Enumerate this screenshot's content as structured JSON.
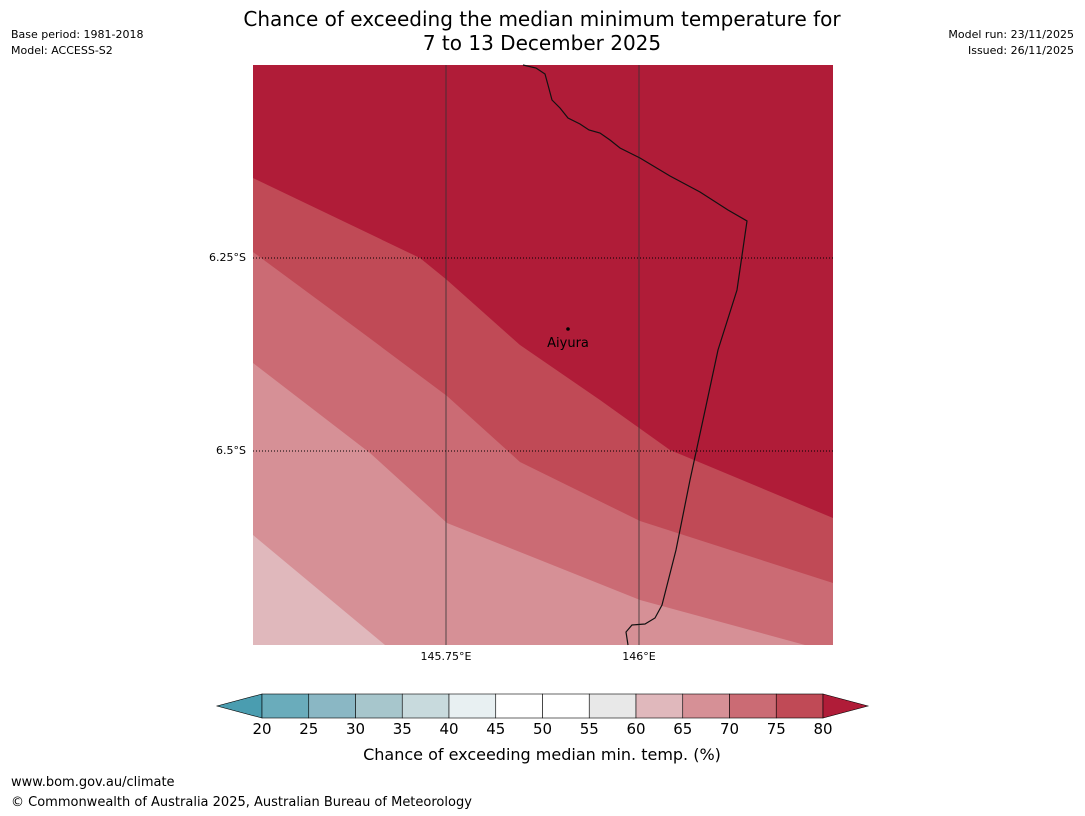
{
  "title": {
    "line1": "Chance of exceeding the median minimum temperature for",
    "line2": "7 to 13 December 2025"
  },
  "meta": {
    "base_period": "Base period: 1981-2018",
    "model": "Model: ACCESS-S2",
    "model_run": "Model run: 23/11/2025",
    "issued": "Issued: 26/11/2025"
  },
  "map": {
    "latitudes": [
      "6.25°S",
      "6.5°S"
    ],
    "longitudes": [
      "145.75°E",
      "146°E"
    ],
    "place": "Aiyura",
    "band_colors": {
      "p80plus": "#b01c38",
      "p75_80": "#c04a56",
      "p70_75": "#cb6b74",
      "p65_70": "#d69096",
      "p60_65": "#e0b8bc"
    }
  },
  "colorbar": {
    "ticks": [
      "20",
      "25",
      "30",
      "35",
      "40",
      "45",
      "50",
      "55",
      "60",
      "65",
      "70",
      "75",
      "80"
    ],
    "segment_colors": [
      "#6aacbb",
      "#8ab7c4",
      "#a7c6cc",
      "#c8dadd",
      "#e8f0f2",
      "#ffffff",
      "#ffffff",
      "#e8e8e8",
      "#e0b8bc",
      "#d69096",
      "#cb6b74",
      "#c04a56"
    ],
    "low_extend_color": "#4a9db0",
    "high_extend_color": "#b01c38",
    "label": "Chance of exceeding median min. temp. (%)"
  },
  "footer": {
    "url": "www.bom.gov.au/climate",
    "copyright": "© Commonwealth of Australia 2025, Australian Bureau of Meteorology"
  }
}
